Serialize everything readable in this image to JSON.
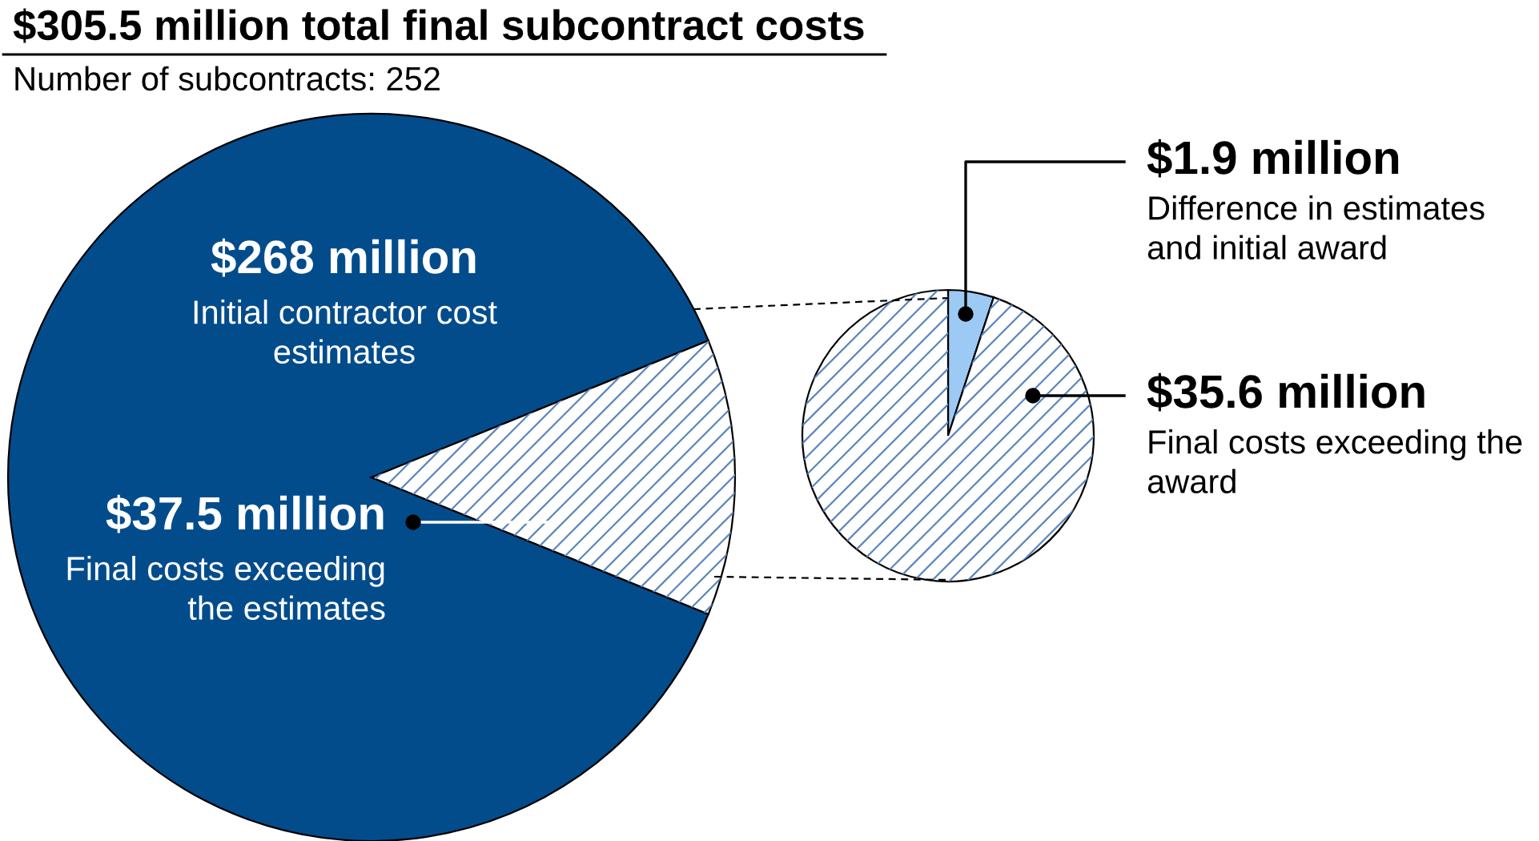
{
  "chart_data": [
    {
      "type": "pie",
      "title": "$305.5 million total final subcontract costs",
      "subtitle": "Number of subcontracts: 252",
      "categories": [
        "Initial contractor cost\nestimates",
        "Final costs exceeding\nthe estimates"
      ],
      "values": [
        268,
        37.5
      ],
      "colors": [
        "#034c8c",
        "#ffffff"
      ],
      "value_labels": [
        "$268 million",
        "$37.5 million"
      ]
    },
    {
      "type": "pie",
      "categories": [
        "Difference in estimates\nand initial award",
        "Final costs exceeding the\naward"
      ],
      "values": [
        1.9,
        35.6
      ],
      "colors": [
        "#9ccaf4",
        "#ffffff"
      ],
      "value_labels": [
        "$1.9 million",
        "$35.6 million"
      ]
    }
  ]
}
